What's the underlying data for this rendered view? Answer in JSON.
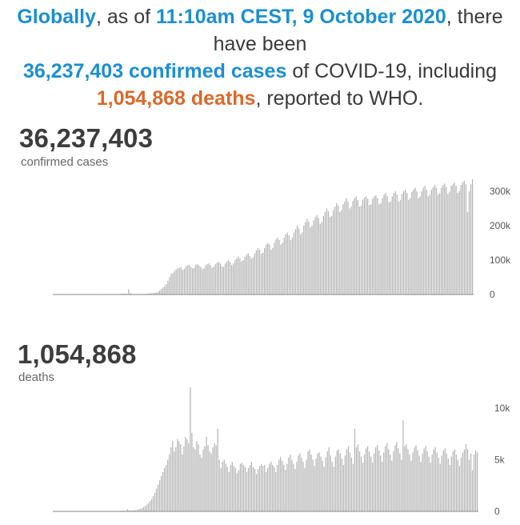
{
  "headline": {
    "w1": "Globally",
    "w2": ", as of ",
    "w3": "11:10am CEST, 9 October 2020",
    "w4": ", there have been ",
    "w5": "36,237,403 confirmed cases",
    "w6": " of COVID-19, including ",
    "w7": "1,054,868 deaths",
    "w8": ", reported to WHO."
  },
  "cases_section": {
    "total": "36,237,403",
    "label": "confirmed cases"
  },
  "deaths_section": {
    "total": "1,054,868",
    "label": "deaths"
  },
  "colors": {
    "blue": "#1b8fd1",
    "orange": "#d96a2b",
    "bar": "#b5b5b5",
    "baseline": "#8a8a8a"
  },
  "chart_data": [
    {
      "type": "bar",
      "name": "cases",
      "xlabel": "",
      "ylabel": "",
      "ylim": [
        0,
        330000
      ],
      "yticks": [
        0,
        100000,
        200000,
        300000
      ],
      "yticklabels": [
        "0",
        "100k",
        "200k",
        "300k"
      ],
      "grid": false,
      "series": [
        {
          "name": "confirmed cases",
          "values": [
            0,
            0,
            0,
            0,
            0,
            0,
            0,
            0,
            0,
            0,
            0,
            0,
            0,
            0,
            0,
            0,
            0,
            0,
            0,
            0,
            0,
            0,
            0,
            0,
            0,
            0,
            0,
            0,
            0,
            0,
            0,
            0,
            0,
            0,
            0,
            0,
            0,
            0,
            0,
            0,
            0,
            2000,
            2000,
            3000,
            2000,
            2000,
            15000,
            4000,
            2000,
            1000,
            1000,
            1000,
            2000,
            1000,
            1000,
            1000,
            2000,
            2000,
            3000,
            3000,
            4000,
            4000,
            5000,
            6000,
            8000,
            12000,
            16000,
            20000,
            24000,
            30000,
            40000,
            50000,
            60000,
            62000,
            68000,
            74000,
            76000,
            78000,
            80000,
            72000,
            75000,
            82000,
            84000,
            86000,
            80000,
            76000,
            78000,
            86000,
            88000,
            84000,
            80000,
            74000,
            76000,
            84000,
            88000,
            90000,
            85000,
            78000,
            80000,
            88000,
            92000,
            95000,
            90000,
            82000,
            80000,
            90000,
            96000,
            100000,
            94000,
            86000,
            90000,
            100000,
            105000,
            110000,
            104000,
            96000,
            100000,
            110000,
            115000,
            120000,
            112000,
            104000,
            108000,
            120000,
            128000,
            135000,
            130000,
            118000,
            122000,
            135000,
            145000,
            150000,
            145000,
            130000,
            135000,
            150000,
            160000,
            165000,
            158000,
            145000,
            150000,
            165000,
            175000,
            180000,
            172000,
            158000,
            165000,
            180000,
            190000,
            200000,
            192000,
            175000,
            180000,
            200000,
            210000,
            220000,
            212000,
            195000,
            200000,
            215000,
            225000,
            230000,
            222000,
            205000,
            210000,
            228000,
            240000,
            250000,
            242000,
            225000,
            228000,
            245000,
            255000,
            265000,
            258000,
            240000,
            245000,
            262000,
            270000,
            280000,
            270000,
            250000,
            255000,
            272000,
            280000,
            285000,
            275000,
            255000,
            258000,
            275000,
            282000,
            285000,
            278000,
            260000,
            262000,
            278000,
            285000,
            288000,
            280000,
            262000,
            265000,
            280000,
            290000,
            295000,
            285000,
            268000,
            270000,
            285000,
            295000,
            300000,
            290000,
            270000,
            275000,
            292000,
            300000,
            305000,
            295000,
            275000,
            280000,
            298000,
            305000,
            310000,
            300000,
            280000,
            285000,
            300000,
            310000,
            315000,
            305000,
            285000,
            290000,
            305000,
            312000,
            318000,
            310000,
            290000,
            295000,
            310000,
            318000,
            322000,
            312000,
            292000,
            298000,
            315000,
            320000,
            325000,
            315000,
            295000,
            300000,
            318000,
            325000,
            330000,
            320000,
            240000,
            300000,
            320000,
            335000
          ]
        }
      ]
    },
    {
      "type": "bar",
      "name": "deaths",
      "xlabel": "",
      "ylabel": "",
      "ylim": [
        0,
        12000
      ],
      "yticks": [
        0,
        5000,
        10000
      ],
      "yticklabels": [
        "0",
        "5k",
        "10k"
      ],
      "grid": false,
      "series": [
        {
          "name": "deaths",
          "values": [
            0,
            0,
            0,
            0,
            0,
            0,
            0,
            0,
            0,
            0,
            0,
            0,
            0,
            0,
            0,
            0,
            0,
            0,
            0,
            0,
            0,
            0,
            0,
            0,
            0,
            0,
            0,
            0,
            0,
            0,
            0,
            0,
            0,
            0,
            0,
            0,
            0,
            0,
            0,
            0,
            0,
            50,
            60,
            80,
            60,
            70,
            200,
            100,
            90,
            80,
            100,
            120,
            150,
            200,
            250,
            300,
            400,
            500,
            650,
            800,
            1000,
            1200,
            1500,
            1800,
            2200,
            2600,
            3000,
            3400,
            3800,
            4200,
            4500,
            5000,
            5500,
            6200,
            6800,
            5800,
            6200,
            7000,
            6800,
            6500,
            5500,
            6300,
            7200,
            7000,
            6600,
            12000,
            7600,
            6200,
            6000,
            6800,
            6500,
            5500,
            5200,
            6000,
            6300,
            7200,
            6400,
            5800,
            5600,
            6200,
            6600,
            6400,
            8000,
            5000,
            4200,
            4800,
            5000,
            4600,
            4300,
            3800,
            4500,
            4800,
            4400,
            4200,
            3700,
            4000,
            4600,
            4700,
            4500,
            4300,
            3800,
            4200,
            4500,
            4800,
            4300,
            4100,
            3600,
            4100,
            4400,
            4600,
            4400,
            4500,
            3800,
            4200,
            4600,
            4800,
            4500,
            4300,
            3800,
            4500,
            5000,
            5300,
            4900,
            4500,
            4000,
            4600,
            5200,
            5500,
            5000,
            4600,
            4100,
            4800,
            5400,
            5600,
            5200,
            4800,
            4200,
            5000,
            5800,
            6000,
            5500,
            5000,
            4400,
            5100,
            5600,
            5700,
            5300,
            4900,
            4300,
            5200,
            5800,
            6200,
            5400,
            4800,
            4300,
            5300,
            5900,
            6000,
            5600,
            5100,
            4500,
            5400,
            6000,
            6300,
            5700,
            5200,
            4600,
            8000,
            6200,
            6500,
            5800,
            5300,
            4700,
            5500,
            6100,
            6300,
            5800,
            5300,
            4700,
            5600,
            6200,
            6400,
            5900,
            5400,
            4800,
            5700,
            6300,
            6600,
            6000,
            5500,
            4900,
            5800,
            6400,
            6700,
            6100,
            5600,
            5000,
            8800,
            6300,
            6500,
            6000,
            5500,
            4900,
            5700,
            6200,
            6400,
            5900,
            5400,
            4800,
            5600,
            6100,
            6300,
            5800,
            5300,
            4700,
            5500,
            6000,
            6200,
            5700,
            5200,
            4600,
            5400,
            5900,
            6100,
            5600,
            5100,
            4500,
            5300,
            5800,
            6000,
            5500,
            5000,
            4400,
            5200,
            5700,
            6000,
            6500,
            6000,
            5000,
            5600,
            4000,
            5500,
            5900,
            5700
          ]
        }
      ]
    }
  ]
}
